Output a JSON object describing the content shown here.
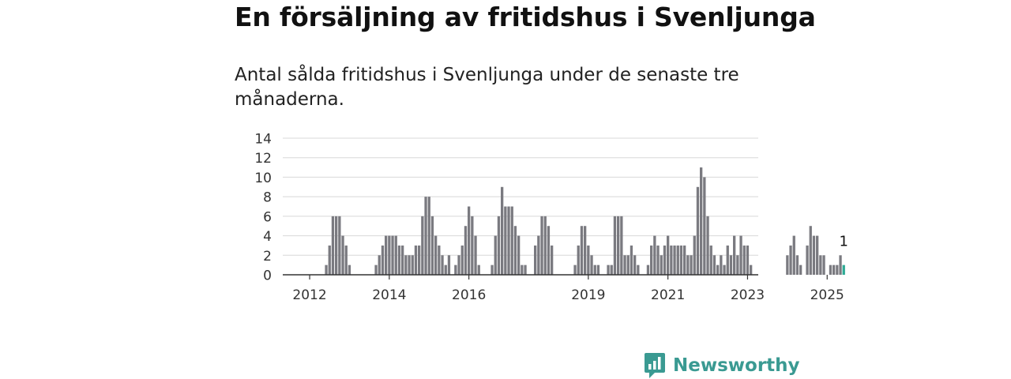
{
  "title": "En försäljning av fritidshus i Svenljunga",
  "subtitle": "Antal sålda fritidshus i Svenljunga under de senaste tre månaderna.",
  "brand": "Newsworthy",
  "colors": {
    "bar": "#7a7a80",
    "highlight": "#2eaa95",
    "grid": "#d8d8d8",
    "axis": "#333333",
    "brand": "#3a9a92"
  },
  "chart_data": {
    "type": "bar",
    "title": "En försäljning av fritidshus i Svenljunga",
    "subtitle": "Antal sålda fritidshus i Svenljunga under de senaste tre månaderna.",
    "xlabel": "",
    "ylabel": "",
    "ylim": [
      0,
      14
    ],
    "y_ticks": [
      "0",
      "2",
      "4",
      "6",
      "8",
      "10",
      "12",
      "14"
    ],
    "x_ticks": [
      "2012",
      "2014",
      "2016",
      "2019",
      "2021",
      "2023",
      "2025"
    ],
    "x_tick_month_index": [
      6,
      30,
      54,
      90,
      114,
      138,
      162
    ],
    "grid": true,
    "legend": "none",
    "series": [
      {
        "values": [
          0,
          0,
          0,
          0,
          0,
          0,
          0,
          0,
          0,
          0,
          0,
          1,
          3,
          6,
          6,
          6,
          4,
          3,
          1,
          0,
          0,
          0,
          0,
          0,
          0,
          0,
          1,
          2,
          3,
          4,
          4,
          4,
          4,
          3,
          3,
          2,
          2,
          2,
          3,
          3,
          6,
          8,
          8,
          6,
          4,
          3,
          2,
          1,
          2,
          0,
          1,
          2,
          3,
          5,
          7,
          6,
          4,
          1,
          0,
          0,
          0,
          1,
          4,
          6,
          9,
          7,
          7,
          7,
          5,
          4,
          1,
          1,
          0,
          0,
          3,
          4,
          6,
          6,
          5,
          3,
          0,
          0,
          0,
          0,
          0,
          0,
          1,
          3,
          5,
          5,
          3,
          2,
          1,
          1,
          0,
          0,
          1,
          1,
          6,
          6,
          6,
          2,
          2,
          3,
          2,
          1,
          0,
          0,
          1,
          3,
          4,
          3,
          2,
          3,
          4,
          3,
          3,
          3,
          3,
          3,
          2,
          2,
          4,
          9,
          11,
          10,
          6,
          3,
          2,
          1,
          2,
          1,
          3,
          2,
          4,
          2,
          4,
          3,
          3,
          1,
          0,
          0,
          0,
          0,
          0,
          0,
          0,
          0,
          0,
          0,
          2,
          3,
          4,
          2,
          1,
          0,
          3,
          5,
          4,
          4,
          2,
          2,
          0,
          1,
          1,
          1,
          2,
          1
        ]
      }
    ],
    "highlight_index": 167,
    "annotations": [
      {
        "index": 167,
        "text": "1"
      }
    ]
  }
}
